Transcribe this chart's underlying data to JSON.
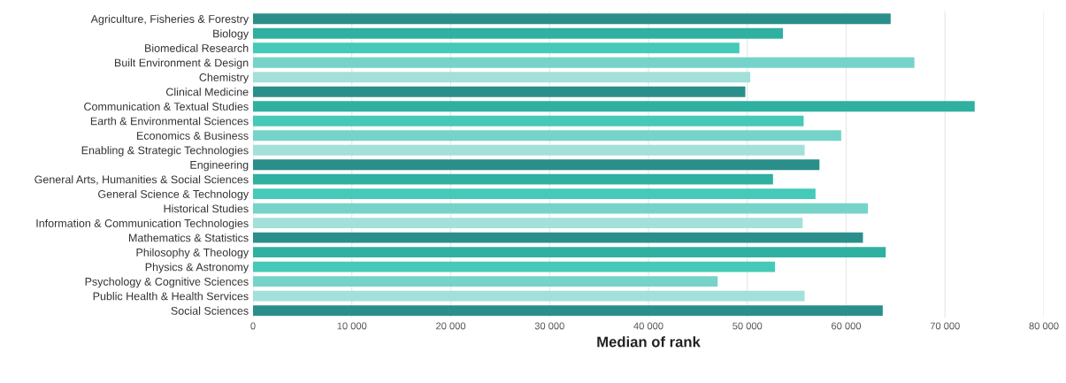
{
  "chart_data": {
    "type": "bar",
    "orientation": "horizontal",
    "xlabel": "Median of rank",
    "categories": [
      "Agriculture, Fisheries & Forestry",
      "Biology",
      "Biomedical Research",
      "Built Environment & Design",
      "Chemistry",
      "Clinical Medicine",
      "Communication & Textual Studies",
      "Earth & Environmental Sciences",
      "Economics & Business",
      "Enabling & Strategic Technologies",
      "Engineering",
      "General Arts, Humanities & Social Sciences",
      "General Science & Technology",
      "Historical Studies",
      "Information & Communication Technologies",
      "Mathematics & Statistics",
      "Philosophy & Theology",
      "Physics & Astronomy",
      "Psychology & Cognitive Sciences",
      "Public Health & Health Services",
      "Social Sciences"
    ],
    "values": [
      64500,
      53600,
      49200,
      66900,
      50300,
      49800,
      73000,
      55700,
      59500,
      55800,
      57300,
      52600,
      56900,
      62200,
      55600,
      61700,
      64000,
      52800,
      47000,
      55800,
      63700
    ],
    "colors": [
      "#2a8f8b",
      "#2fb0a0",
      "#45c9b8",
      "#76d3c9",
      "#a3e0da",
      "#2a8f8b",
      "#2fb0a0",
      "#45c9b8",
      "#76d3c9",
      "#a3e0da",
      "#2a8f8b",
      "#2fb0a0",
      "#45c9b8",
      "#76d3c9",
      "#a3e0da",
      "#2a8f8b",
      "#2fb0a0",
      "#45c9b8",
      "#76d3c9",
      "#a3e0da",
      "#2a8f8b"
    ],
    "xlim": [
      0,
      80000
    ],
    "xticks": [
      0,
      {
        "value": 10000,
        "label": "10 000"
      },
      {
        "value": 20000,
        "label": "20 000"
      },
      {
        "value": 30000,
        "label": "30 000"
      },
      {
        "value": 40000,
        "label": "40 000"
      },
      {
        "value": 50000,
        "label": "50 000"
      },
      {
        "value": 60000,
        "label": "60 000"
      },
      {
        "value": 70000,
        "label": "70 000"
      },
      {
        "value": 80000,
        "label": "80 000"
      }
    ],
    "grid": "x"
  }
}
